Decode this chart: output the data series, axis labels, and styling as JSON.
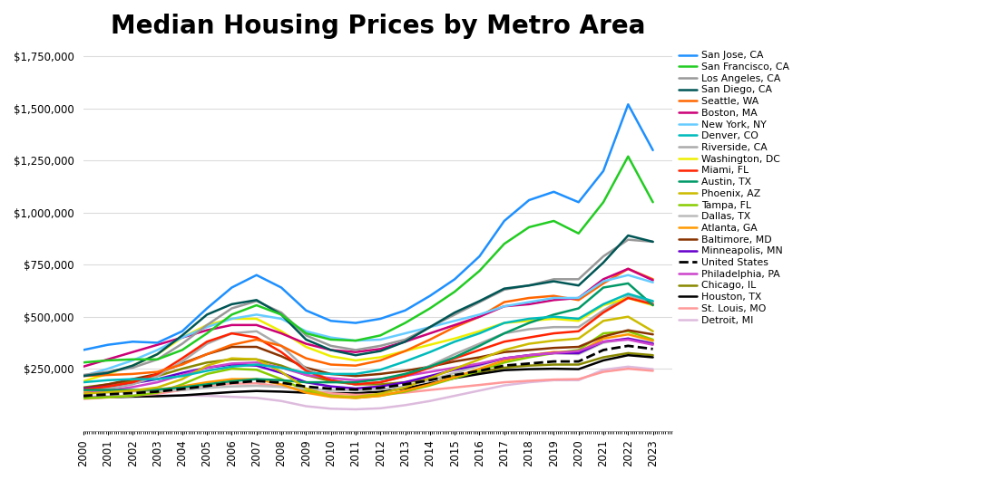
{
  "title": "Median Housing Prices by Metro Area",
  "title_fontsize": 20,
  "title_fontweight": "bold",
  "figsize": [
    11.0,
    5.3
  ],
  "dpi": 100,
  "ylim": [
    -50000,
    1800000
  ],
  "yticks": [
    250000,
    500000,
    750000,
    1000000,
    1250000,
    1500000,
    1750000
  ],
  "xmin": 2000,
  "xmax": 2023.8,
  "series": [
    {
      "name": "San Jose, CA",
      "color": "#1E90FF",
      "lw": 1.8,
      "linestyle": "-",
      "zorder": 10,
      "values": [
        340000,
        365000,
        380000,
        375000,
        430000,
        540000,
        640000,
        700000,
        640000,
        530000,
        480000,
        470000,
        490000,
        530000,
        600000,
        680000,
        790000,
        960000,
        1060000,
        1100000,
        1050000,
        1200000,
        1520000,
        1300000
      ]
    },
    {
      "name": "San Francisco, CA",
      "color": "#22CC22",
      "lw": 1.8,
      "linestyle": "-",
      "zorder": 9,
      "values": [
        280000,
        290000,
        295000,
        295000,
        340000,
        420000,
        510000,
        555000,
        510000,
        420000,
        390000,
        385000,
        410000,
        470000,
        540000,
        620000,
        720000,
        850000,
        930000,
        960000,
        900000,
        1050000,
        1270000,
        1050000
      ]
    },
    {
      "name": "Los Angeles, CA",
      "color": "#999999",
      "lw": 1.8,
      "linestyle": "-",
      "zorder": 8,
      "values": [
        220000,
        235000,
        255000,
        295000,
        370000,
        460000,
        540000,
        575000,
        520000,
        410000,
        360000,
        340000,
        360000,
        390000,
        450000,
        510000,
        570000,
        630000,
        650000,
        680000,
        680000,
        790000,
        870000,
        860000
      ]
    },
    {
      "name": "San Diego, CA",
      "color": "#005555",
      "lw": 1.8,
      "linestyle": "-",
      "zorder": 8,
      "values": [
        215000,
        230000,
        265000,
        320000,
        410000,
        510000,
        560000,
        580000,
        510000,
        390000,
        340000,
        315000,
        335000,
        380000,
        450000,
        520000,
        575000,
        635000,
        650000,
        670000,
        650000,
        760000,
        890000,
        860000
      ]
    },
    {
      "name": "Seattle, WA",
      "color": "#FF6600",
      "lw": 1.8,
      "linestyle": "-",
      "zorder": 7,
      "values": [
        215000,
        220000,
        225000,
        235000,
        270000,
        320000,
        365000,
        390000,
        360000,
        300000,
        270000,
        265000,
        290000,
        335000,
        390000,
        450000,
        500000,
        570000,
        590000,
        600000,
        580000,
        660000,
        730000,
        680000
      ]
    },
    {
      "name": "Boston, MA",
      "color": "#CC0077",
      "lw": 1.8,
      "linestyle": "-",
      "zorder": 7,
      "values": [
        260000,
        295000,
        330000,
        365000,
        400000,
        435000,
        460000,
        460000,
        420000,
        370000,
        340000,
        330000,
        345000,
        380000,
        420000,
        460000,
        500000,
        550000,
        560000,
        580000,
        590000,
        680000,
        730000,
        675000
      ]
    },
    {
      "name": "New York, NY",
      "color": "#66CCFF",
      "lw": 1.8,
      "linestyle": "-",
      "zorder": 7,
      "values": [
        215000,
        250000,
        290000,
        340000,
        400000,
        450000,
        490000,
        510000,
        490000,
        430000,
        400000,
        385000,
        390000,
        420000,
        450000,
        480000,
        510000,
        550000,
        570000,
        590000,
        590000,
        670000,
        700000,
        665000
      ]
    },
    {
      "name": "Denver, CO",
      "color": "#00BBBB",
      "lw": 1.8,
      "linestyle": "-",
      "zorder": 7,
      "values": [
        185000,
        195000,
        200000,
        200000,
        215000,
        240000,
        260000,
        270000,
        255000,
        230000,
        225000,
        225000,
        245000,
        285000,
        330000,
        380000,
        420000,
        470000,
        490000,
        500000,
        490000,
        560000,
        610000,
        575000
      ]
    },
    {
      "name": "Riverside, CA",
      "color": "#AAAAAA",
      "lw": 1.8,
      "linestyle": "-",
      "zorder": 6,
      "values": [
        148000,
        155000,
        175000,
        215000,
        285000,
        370000,
        420000,
        430000,
        360000,
        250000,
        195000,
        175000,
        185000,
        215000,
        265000,
        320000,
        370000,
        420000,
        440000,
        450000,
        450000,
        530000,
        600000,
        570000
      ]
    },
    {
      "name": "Washington, DC",
      "color": "#EEEE00",
      "lw": 1.8,
      "linestyle": "-",
      "zorder": 6,
      "values": [
        190000,
        225000,
        265000,
        320000,
        400000,
        460000,
        490000,
        490000,
        430000,
        355000,
        310000,
        290000,
        305000,
        335000,
        365000,
        395000,
        430000,
        470000,
        480000,
        490000,
        480000,
        555000,
        590000,
        555000
      ]
    },
    {
      "name": "Miami, FL",
      "color": "#FF2200",
      "lw": 1.8,
      "linestyle": "-",
      "zorder": 6,
      "values": [
        150000,
        165000,
        185000,
        225000,
        300000,
        380000,
        420000,
        400000,
        330000,
        240000,
        195000,
        175000,
        185000,
        215000,
        255000,
        300000,
        340000,
        380000,
        400000,
        420000,
        430000,
        520000,
        590000,
        560000
      ]
    },
    {
      "name": "Austin, TX",
      "color": "#009966",
      "lw": 1.8,
      "linestyle": "-",
      "zorder": 6,
      "values": [
        148000,
        148000,
        148000,
        150000,
        160000,
        175000,
        190000,
        200000,
        195000,
        185000,
        185000,
        185000,
        200000,
        225000,
        260000,
        305000,
        360000,
        420000,
        470000,
        510000,
        540000,
        640000,
        660000,
        555000
      ]
    },
    {
      "name": "Phoenix, AZ",
      "color": "#CCBB00",
      "lw": 1.8,
      "linestyle": "-",
      "zorder": 6,
      "values": [
        130000,
        137000,
        145000,
        160000,
        200000,
        265000,
        300000,
        295000,
        235000,
        155000,
        120000,
        115000,
        130000,
        160000,
        205000,
        250000,
        295000,
        340000,
        370000,
        385000,
        395000,
        480000,
        500000,
        430000
      ]
    },
    {
      "name": "Tampa, FL",
      "color": "#88CC00",
      "lw": 1.8,
      "linestyle": "-",
      "zorder": 5,
      "values": [
        108000,
        113000,
        120000,
        135000,
        175000,
        225000,
        250000,
        245000,
        200000,
        145000,
        120000,
        110000,
        120000,
        140000,
        170000,
        205000,
        240000,
        280000,
        305000,
        325000,
        340000,
        420000,
        430000,
        390000
      ]
    },
    {
      "name": "Dallas, TX",
      "color": "#BBBBBB",
      "lw": 1.8,
      "linestyle": "-",
      "zorder": 5,
      "values": [
        135000,
        138000,
        141000,
        143000,
        148000,
        158000,
        165000,
        168000,
        163000,
        153000,
        148000,
        145000,
        150000,
        165000,
        195000,
        230000,
        265000,
        300000,
        315000,
        325000,
        320000,
        375000,
        395000,
        375000
      ]
    },
    {
      "name": "Atlanta, GA",
      "color": "#FF9900",
      "lw": 1.8,
      "linestyle": "-",
      "zorder": 5,
      "values": [
        135000,
        140000,
        145000,
        150000,
        165000,
        185000,
        200000,
        200000,
        175000,
        135000,
        115000,
        110000,
        120000,
        145000,
        175000,
        210000,
        250000,
        290000,
        315000,
        330000,
        330000,
        395000,
        415000,
        385000
      ]
    },
    {
      "name": "Baltimore, MD",
      "color": "#883300",
      "lw": 1.8,
      "linestyle": "-",
      "zorder": 5,
      "values": [
        155000,
        175000,
        200000,
        225000,
        275000,
        320000,
        355000,
        355000,
        310000,
        255000,
        225000,
        215000,
        225000,
        240000,
        260000,
        285000,
        305000,
        330000,
        340000,
        350000,
        355000,
        405000,
        435000,
        415000
      ]
    },
    {
      "name": "Minneapolis, MN",
      "color": "#6600CC",
      "lw": 1.8,
      "linestyle": "-",
      "zorder": 5,
      "values": [
        155000,
        165000,
        180000,
        200000,
        230000,
        255000,
        270000,
        265000,
        230000,
        185000,
        165000,
        155000,
        165000,
        185000,
        215000,
        245000,
        270000,
        300000,
        315000,
        325000,
        325000,
        380000,
        395000,
        370000
      ]
    },
    {
      "name": "United States",
      "color": "#000000",
      "lw": 2.0,
      "linestyle": "--",
      "zorder": 6,
      "values": [
        120000,
        127000,
        133000,
        140000,
        153000,
        167000,
        182000,
        191000,
        183000,
        164000,
        154000,
        150000,
        158000,
        175000,
        195000,
        220000,
        240000,
        265000,
        275000,
        285000,
        285000,
        340000,
        360000,
        345000
      ]
    },
    {
      "name": "Philadelphia, PA",
      "color": "#CC44CC",
      "lw": 1.8,
      "linestyle": "-",
      "zorder": 5,
      "values": [
        130000,
        145000,
        162000,
        185000,
        220000,
        255000,
        275000,
        280000,
        255000,
        220000,
        205000,
        195000,
        200000,
        215000,
        235000,
        255000,
        275000,
        300000,
        315000,
        325000,
        335000,
        380000,
        390000,
        365000
      ]
    },
    {
      "name": "Chicago, IL",
      "color": "#888800",
      "lw": 1.8,
      "linestyle": "-",
      "zorder": 4,
      "values": [
        160000,
        175000,
        192000,
        215000,
        250000,
        280000,
        295000,
        295000,
        265000,
        220000,
        190000,
        175000,
        175000,
        185000,
        200000,
        215000,
        235000,
        255000,
        265000,
        270000,
        270000,
        305000,
        325000,
        315000
      ]
    },
    {
      "name": "Houston, TX",
      "color": "#000000",
      "lw": 1.8,
      "linestyle": "-",
      "zorder": 4,
      "values": [
        110000,
        113000,
        116000,
        118000,
        122000,
        130000,
        138000,
        143000,
        140000,
        135000,
        133000,
        132000,
        140000,
        155000,
        180000,
        205000,
        225000,
        243000,
        248000,
        250000,
        248000,
        290000,
        315000,
        305000
      ]
    },
    {
      "name": "St. Louis, MO",
      "color": "#FF9999",
      "lw": 1.8,
      "linestyle": "-",
      "zorder": 4,
      "values": [
        105000,
        112000,
        120000,
        130000,
        148000,
        165000,
        178000,
        180000,
        165000,
        145000,
        132000,
        125000,
        127000,
        135000,
        148000,
        160000,
        172000,
        185000,
        192000,
        198000,
        200000,
        235000,
        250000,
        240000
      ]
    },
    {
      "name": "Detroit, MI",
      "color": "#DDBBDD",
      "lw": 1.8,
      "linestyle": "-",
      "zorder": 3,
      "values": [
        115000,
        118000,
        120000,
        120000,
        122000,
        120000,
        115000,
        110000,
        95000,
        70000,
        58000,
        55000,
        60000,
        75000,
        95000,
        120000,
        145000,
        170000,
        185000,
        195000,
        195000,
        245000,
        260000,
        248000
      ]
    }
  ],
  "background_color": "#ffffff",
  "grid_color": "#cccccc",
  "grid_alpha": 0.7,
  "legend_fontsize": 7.8
}
